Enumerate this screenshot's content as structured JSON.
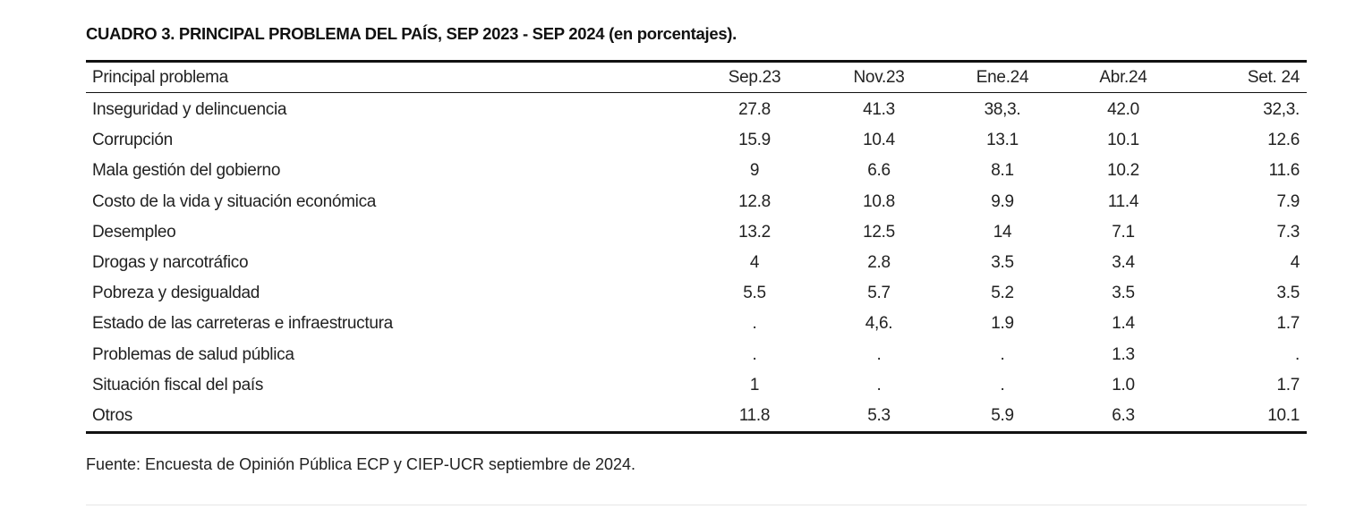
{
  "title": "CUADRO 3. PRINCIPAL PROBLEMA DEL PAÍS, SEP 2023 - SEP 2024 (en porcentajes).",
  "table": {
    "header": [
      "Principal problema",
      "Sep.23",
      "Nov.23",
      "Ene.24",
      "Abr.24",
      "Set. 24"
    ],
    "rows": [
      [
        "Inseguridad y delincuencia",
        "27.8",
        "41.3",
        "38,3.",
        "42.0",
        "32,3."
      ],
      [
        "Corrupción",
        "15.9",
        "10.4",
        "13.1",
        "10.1",
        "12.6"
      ],
      [
        "Mala gestión del gobierno",
        "9",
        "6.6",
        "8.1",
        "10.2",
        "11.6"
      ],
      [
        "Costo de la vida y situación económica",
        "12.8",
        "10.8",
        "9.9",
        "11.4",
        "7.9"
      ],
      [
        "Desempleo",
        "13.2",
        "12.5",
        "14",
        "7.1",
        "7.3"
      ],
      [
        "Drogas y narcotráfico",
        "4",
        "2.8",
        "3.5",
        "3.4",
        "4"
      ],
      [
        "Pobreza y desigualdad",
        "5.5",
        "5.7",
        "5.2",
        "3.5",
        "3.5"
      ],
      [
        "Estado de las carreteras e infraestructura",
        ".",
        "4,6.",
        "1.9",
        "1.4",
        "1.7"
      ],
      [
        "Problemas de salud pública",
        ".",
        ".",
        ".",
        "1.3",
        "."
      ],
      [
        "Situación fiscal del país",
        "1",
        ".",
        ".",
        "1.0",
        "1.7"
      ],
      [
        "Otros",
        "11.8",
        "5.3",
        "5.9",
        "6.3",
        "10.1"
      ]
    ]
  },
  "footnote": "Fuente: Encuesta de Opinión Pública ECP y CIEP-UCR septiembre de 2024."
}
